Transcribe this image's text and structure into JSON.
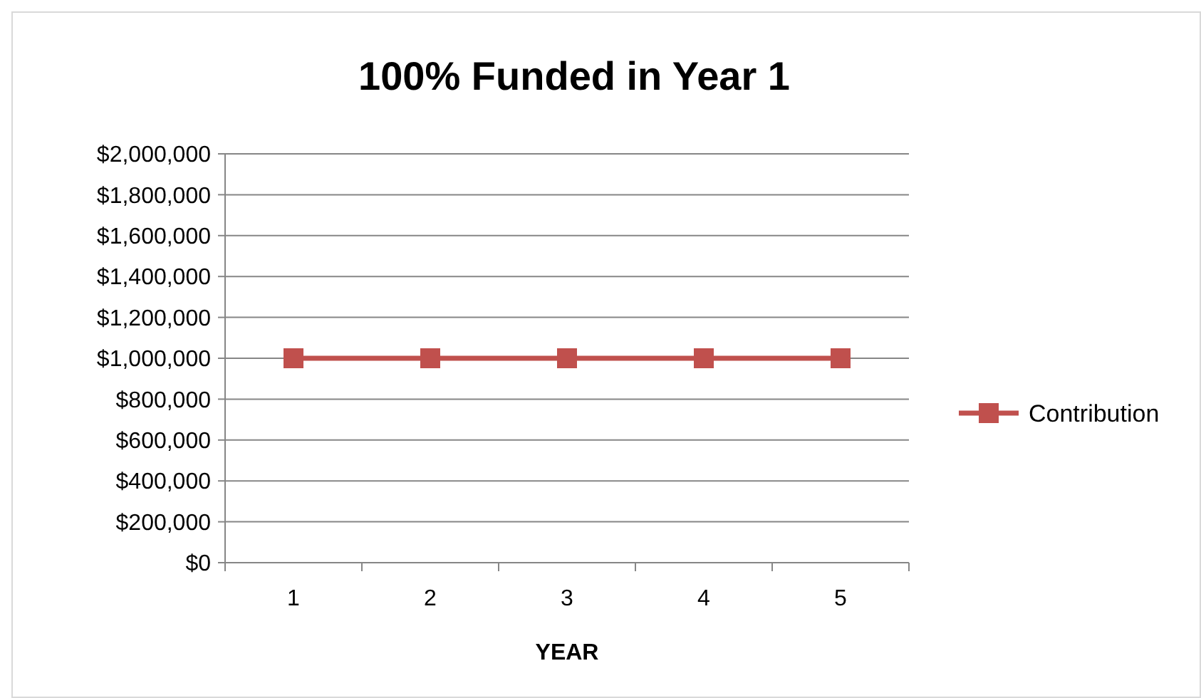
{
  "chart_data": {
    "type": "line",
    "title": "100% Funded in Year 1",
    "xlabel": "YEAR",
    "categories": [
      "1",
      "2",
      "3",
      "4",
      "5"
    ],
    "series": [
      {
        "name": "Contribution",
        "color": "#c0504d",
        "values": [
          1000000,
          1000000,
          1000000,
          1000000,
          1000000
        ]
      }
    ],
    "ylim": [
      0,
      2000000
    ],
    "yticks": [
      {
        "value": 0,
        "label": "$0"
      },
      {
        "value": 200000,
        "label": "$200,000"
      },
      {
        "value": 400000,
        "label": "$400,000"
      },
      {
        "value": 600000,
        "label": "$600,000"
      },
      {
        "value": 800000,
        "label": "$800,000"
      },
      {
        "value": 1000000,
        "label": "$1,000,000"
      },
      {
        "value": 1200000,
        "label": "$1,200,000"
      },
      {
        "value": 1400000,
        "label": "$1,400,000"
      },
      {
        "value": 1600000,
        "label": "$1,600,000"
      },
      {
        "value": 1800000,
        "label": "$1,800,000"
      },
      {
        "value": 2000000,
        "label": "$2,000,000"
      }
    ],
    "grid": "y",
    "legend": "right",
    "marker": "square",
    "line_style": "solid"
  }
}
